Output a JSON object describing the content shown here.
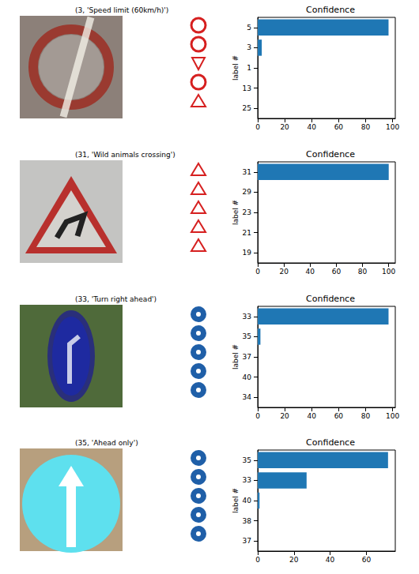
{
  "image_titles": [
    "(3, 'Speed limit (60km/h)')",
    "(31, 'Wild animals crossing')",
    "(33, 'Turn right ahead')",
    "(35, 'Ahead only')"
  ],
  "chart_data": [
    {
      "type": "bar",
      "orientation": "horizontal",
      "title": "Confidence",
      "y_label": "label #",
      "categories": [
        "5",
        "3",
        "1",
        "13",
        "25"
      ],
      "values": [
        97,
        3,
        0,
        0,
        0
      ],
      "color": "#1f77b4",
      "xlim": [
        0,
        102
      ],
      "xticks": [
        0,
        20,
        40,
        60,
        80,
        100
      ]
    },
    {
      "type": "bar",
      "orientation": "horizontal",
      "title": "Confidence",
      "y_label": "label #",
      "categories": [
        "31",
        "29",
        "23",
        "21",
        "19"
      ],
      "values": [
        100,
        0,
        0,
        0,
        0
      ],
      "color": "#1f77b4",
      "xlim": [
        0,
        105
      ],
      "xticks": [
        0,
        20,
        40,
        60,
        80,
        100
      ]
    },
    {
      "type": "bar",
      "orientation": "horizontal",
      "title": "Confidence",
      "y_label": "label #",
      "categories": [
        "33",
        "35",
        "37",
        "40",
        "34"
      ],
      "values": [
        97,
        2,
        0,
        0,
        0
      ],
      "color": "#1f77b4",
      "xlim": [
        0,
        102
      ],
      "xticks": [
        0,
        20,
        40,
        60,
        80,
        100
      ]
    },
    {
      "type": "bar",
      "orientation": "horizontal",
      "title": "Confidence",
      "y_label": "label #",
      "categories": [
        "35",
        "33",
        "40",
        "38",
        "37"
      ],
      "values": [
        72,
        27,
        1,
        0,
        0
      ],
      "color": "#1f77b4",
      "xlim": [
        0,
        76
      ],
      "xticks": [
        0,
        20,
        40,
        60
      ]
    }
  ]
}
